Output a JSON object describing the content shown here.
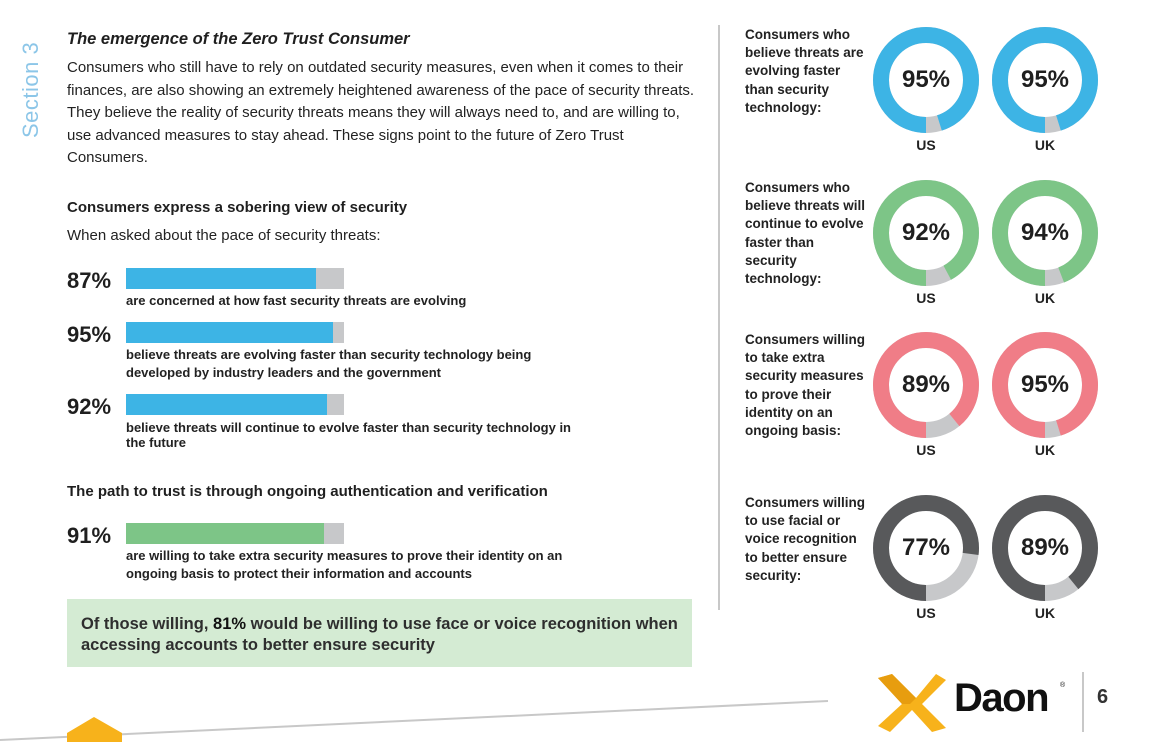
{
  "section_label": "Section 3",
  "intro": {
    "title": "The emergence of the Zero Trust Consumer",
    "body": "Consumers who still have to rely on outdated security measures, even when it comes to their finances, are also showing an extremely heightened awareness of the pace of security threats. They believe the reality of security threats means they will always need to, and are willing to, use advanced measures to stay ahead. These signs point to the future of Zero Trust Consumers."
  },
  "sobering": {
    "heading": "Consumers express a sobering view of security",
    "subheading": "When asked about the pace of security threats:",
    "stats": [
      {
        "pct_label": "87%",
        "value": 87,
        "desc": "are concerned at how fast security threats are evolving"
      },
      {
        "pct_label": "95%",
        "value": 95,
        "desc": "believe threats are evolving faster than security technology being developed by industry leaders and the government"
      },
      {
        "pct_label": "92%",
        "value": 92,
        "desc": "believe threats will continue to evolve faster than security technology in the future"
      }
    ]
  },
  "path": {
    "heading": "The path to trust is through ongoing authentication and verification",
    "stat": {
      "pct_label": "91%",
      "value": 91,
      "desc": "are willing to take extra security measures to prove their identity on an ongoing basis to protect their information and accounts"
    }
  },
  "callout": {
    "prefix": "Of those willing,",
    "highlight": "81%",
    "suffix": "would be willing to use face or voice recognition when accessing accounts to better ensure security"
  },
  "donut_groups": [
    {
      "label": "Consumers who believe threats are evolving faster than security technology:",
      "color": "#3db4e5",
      "items": [
        {
          "country": "US",
          "pct_label": "95%",
          "value": 95
        },
        {
          "country": "UK",
          "pct_label": "95%",
          "value": 95
        }
      ]
    },
    {
      "label": "Consumers who believe threats will continue to evolve faster than security technology:",
      "color": "#7dc587",
      "items": [
        {
          "country": "US",
          "pct_label": "92%",
          "value": 92
        },
        {
          "country": "UK",
          "pct_label": "94%",
          "value": 94
        }
      ]
    },
    {
      "label": "Consumers willing to take extra security measures to prove their identity on an ongoing basis:",
      "color": "#f07d87",
      "items": [
        {
          "country": "US",
          "pct_label": "89%",
          "value": 89
        },
        {
          "country": "UK",
          "pct_label": "95%",
          "value": 95
        }
      ]
    },
    {
      "label": "Consumers willing to use facial or voice recognition to better ensure security:",
      "color": "#58595b",
      "items": [
        {
          "country": "US",
          "pct_label": "77%",
          "value": 77
        },
        {
          "country": "UK",
          "pct_label": "89%",
          "value": 89
        }
      ]
    }
  ],
  "colors": {
    "remainder": "#c7c8ca",
    "accent_blue": "#3db4e5",
    "accent_green": "#7dc587",
    "logo_yellow": "#f7b21b"
  },
  "brand": {
    "name": "Daon",
    "trademark": "®"
  },
  "page_number": "6"
}
